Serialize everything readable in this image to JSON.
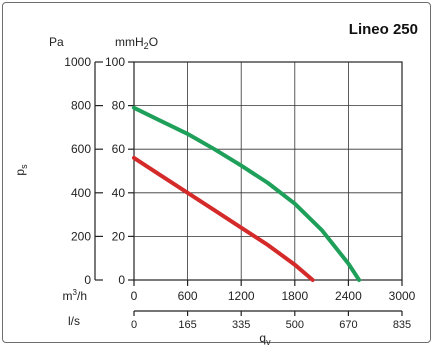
{
  "chart_data": {
    "type": "line",
    "title": "Lineo 250",
    "y_axis_pa": {
      "unit": "Pa",
      "ticks": [
        0,
        200,
        400,
        600,
        800,
        1000
      ],
      "range": [
        0,
        1000
      ]
    },
    "y_axis_mmh2o": {
      "unit_prefix": "mmH",
      "unit_sub": "2",
      "unit_suffix": "O",
      "ticks": [
        0,
        20,
        40,
        60,
        80,
        100
      ],
      "range": [
        0,
        100
      ]
    },
    "ylabel_main": "p",
    "ylabel_sub": "s",
    "x_axis_m3h": {
      "unit_prefix": "m",
      "unit_sup": "3",
      "unit_suffix": "/h",
      "ticks": [
        "0",
        "600",
        "1200",
        "1800",
        "2400",
        "3000"
      ],
      "range": [
        0,
        3000
      ]
    },
    "x_axis_ls": {
      "unit": "l/s",
      "ticks": [
        "0",
        "165",
        "335",
        "500",
        "670",
        "835"
      ]
    },
    "xlabel_main": "q",
    "xlabel_sub": "v",
    "grid": true,
    "series": [
      {
        "color": "#1fa05a",
        "x": [
          0,
          300,
          600,
          900,
          1200,
          1500,
          1800,
          2100,
          2400,
          2520
        ],
        "y": [
          790,
          730,
          670,
          600,
          525,
          445,
          350,
          230,
          75,
          0
        ]
      },
      {
        "color": "#d42a2a",
        "x": [
          0,
          300,
          600,
          900,
          1200,
          1500,
          1800,
          2000
        ],
        "y": [
          560,
          480,
          400,
          320,
          240,
          160,
          70,
          0
        ]
      }
    ]
  }
}
